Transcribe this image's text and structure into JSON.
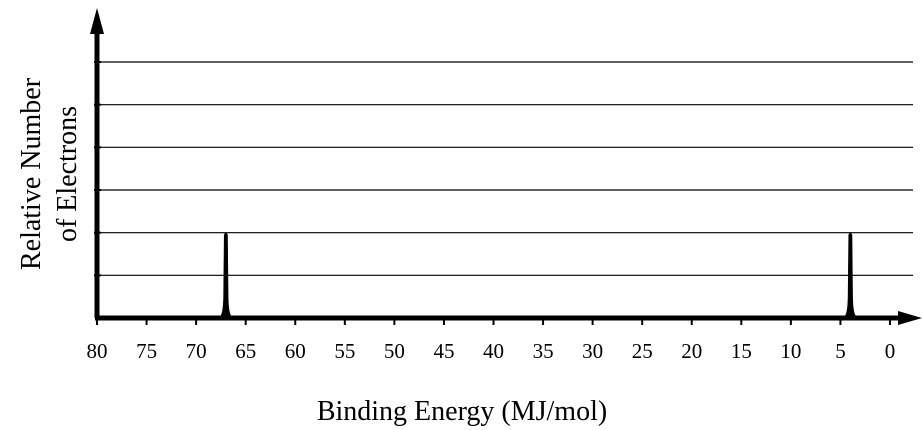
{
  "chart_data": {
    "type": "line",
    "xlabel": "Binding Energy (MJ/mol)",
    "ylabel_lines": [
      "Relative Number",
      "of Electrons"
    ],
    "x_reversed": true,
    "xlim": [
      80,
      0
    ],
    "xticks": [
      80,
      75,
      70,
      65,
      60,
      55,
      50,
      45,
      40,
      35,
      30,
      25,
      20,
      15,
      10,
      5,
      0
    ],
    "ylim": [
      0,
      6
    ],
    "grid_y": [
      1,
      2,
      3,
      4,
      5,
      6
    ],
    "peaks": [
      {
        "x": 67,
        "y": 2
      },
      {
        "x": 4,
        "y": 2
      }
    ]
  }
}
